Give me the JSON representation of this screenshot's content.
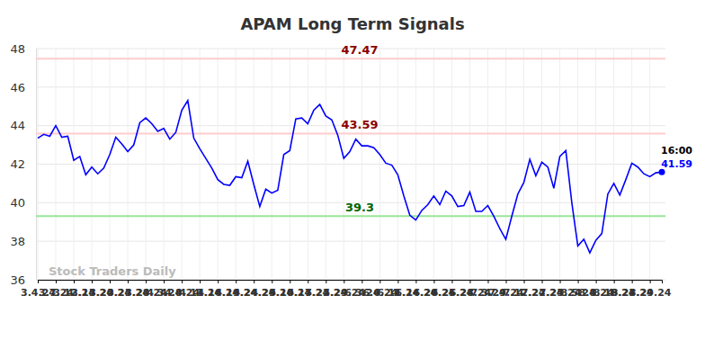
{
  "chart_data": {
    "type": "line",
    "title": "APAM Long Term Signals",
    "watermark": "Stock Traders Daily",
    "end_label": "16:00",
    "color": "#0000ff",
    "grid": true,
    "data_labels": true,
    "x": [
      "3.4.24",
      null,
      null,
      "3.7.24",
      null,
      null,
      "3.12.24",
      null,
      null,
      "3.15.24",
      null,
      null,
      "3.20.24",
      null,
      null,
      "3.25.24",
      null,
      null,
      "3.28.24",
      null,
      null,
      "4.3.24",
      null,
      null,
      "4.8.24",
      null,
      null,
      "4.11.24",
      null,
      null,
      "4.16.24",
      null,
      null,
      "4.19.24",
      null,
      null,
      "4.24.24",
      null,
      null,
      "4.29.24",
      null,
      null,
      "5.10.24",
      null,
      null,
      "5.17.24",
      null,
      null,
      "5.22.24",
      null,
      null,
      "5.29.24",
      null,
      null,
      "6.3.24",
      null,
      null,
      "6.6.24",
      null,
      null,
      "6.11.24",
      null,
      null,
      "6.14.24",
      null,
      null,
      "6.20.24",
      null,
      null,
      "6.25.24",
      null,
      null,
      "6.28.24",
      null,
      null,
      "7.3.24",
      null,
      null,
      "7.9.24",
      null,
      null,
      "7.12.24",
      null,
      null,
      "7.22.24",
      null,
      null,
      "7.25.24",
      null,
      null,
      "8.5.24",
      null,
      null,
      "8.8.24",
      null,
      null,
      "8.19.24",
      null,
      null,
      "8.23.24",
      null,
      null,
      "8.29.24",
      null,
      null
    ],
    "values": [
      43.35,
      43.55,
      43.45,
      44.0,
      43.4,
      43.45,
      42.2,
      42.4,
      41.45,
      41.85,
      41.5,
      41.8,
      42.5,
      43.4,
      43.05,
      42.65,
      43.0,
      44.15,
      44.4,
      44.1,
      43.7,
      43.85,
      43.3,
      43.65,
      44.8,
      45.3,
      43.35,
      42.8,
      42.3,
      41.8,
      41.2,
      40.95,
      40.9,
      41.35,
      41.3,
      42.15,
      40.95,
      39.8,
      40.7,
      40.5,
      40.65,
      42.5,
      42.7,
      44.35,
      44.4,
      44.1,
      44.8,
      45.1,
      44.5,
      44.3,
      43.5,
      42.3,
      42.65,
      43.3,
      42.95,
      42.95,
      42.85,
      42.5,
      42.05,
      41.95,
      41.45,
      40.35,
      39.35,
      39.1,
      39.6,
      39.9,
      40.35,
      39.9,
      40.6,
      40.35,
      39.8,
      39.85,
      40.55,
      39.55,
      39.55,
      39.85,
      39.3,
      38.65,
      38.1,
      39.3,
      40.45,
      41.05,
      42.25,
      41.4,
      42.1,
      41.85,
      40.75,
      42.4,
      42.7,
      40.0,
      37.75,
      38.1,
      37.4,
      38.05,
      38.4,
      40.45,
      41.0,
      40.4,
      41.2,
      42.05,
      41.85,
      41.5,
      41.35,
      41.55,
      41.59
    ],
    "ylim": [
      36,
      48
    ],
    "yticks": [
      36,
      38,
      40,
      42,
      44,
      46,
      48
    ],
    "reference_lines": [
      {
        "value": 47.47,
        "color": "#ffcccc",
        "label_color": "#8b0000"
      },
      {
        "value": 43.59,
        "color": "#ffcccc",
        "label_color": "#8b0000"
      },
      {
        "value": 39.3,
        "color": "#99e699",
        "label_color": "#006400"
      }
    ]
  }
}
